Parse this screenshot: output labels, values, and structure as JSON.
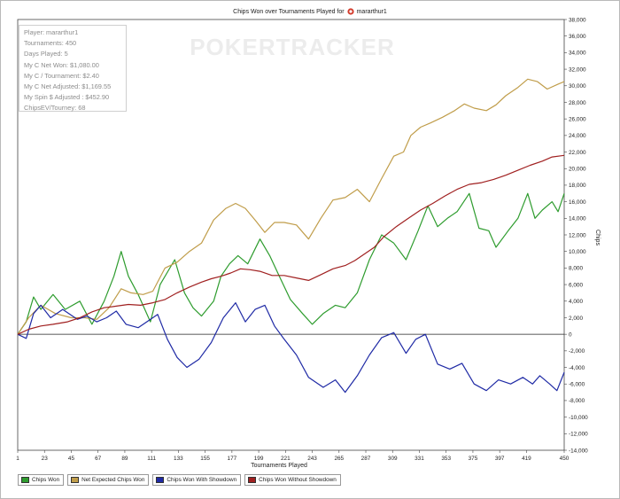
{
  "chart_data": {
    "type": "line",
    "title": "Chips Won over Tournaments Played for",
    "player_label": "mararthur1",
    "watermark": "POKERTRACKER",
    "xlabel": "Tournaments Played",
    "ylabel": "Chips",
    "xlim": [
      1,
      450
    ],
    "ylim": [
      -14000,
      38000
    ],
    "x_ticks": [
      1,
      23,
      45,
      67,
      89,
      111,
      133,
      155,
      177,
      199,
      221,
      243,
      265,
      287,
      309,
      331,
      353,
      375,
      397,
      419,
      450
    ],
    "y_ticks": [
      -14000,
      -12000,
      -10000,
      -8000,
      -6000,
      -4000,
      -2000,
      0,
      2000,
      4000,
      6000,
      8000,
      10000,
      12000,
      14000,
      16000,
      18000,
      20000,
      22000,
      24000,
      26000,
      28000,
      30000,
      32000,
      34000,
      36000,
      38000
    ],
    "y_tick_labels": [
      "-14,000",
      "-12,000",
      "-10,000",
      "-8,000",
      "-6,000",
      "-4,000",
      "-2,000",
      "0",
      "2,000",
      "4,000",
      "6,000",
      "8,000",
      "10,000",
      "12,000",
      "14,000",
      "16,000",
      "18,000",
      "20,000",
      "22,000",
      "24,000",
      "26,000",
      "28,000",
      "30,000",
      "32,000",
      "34,000",
      "36,000",
      "38,000"
    ],
    "grid": false,
    "legend_position": "bottom-left",
    "series": [
      {
        "name": "Chips Won",
        "color": "#2e9c2e",
        "points": [
          [
            1,
            0
          ],
          [
            8,
            1500
          ],
          [
            14,
            4500
          ],
          [
            20,
            3000
          ],
          [
            30,
            4800
          ],
          [
            40,
            3000
          ],
          [
            52,
            4000
          ],
          [
            62,
            1200
          ],
          [
            72,
            4000
          ],
          [
            80,
            7000
          ],
          [
            86,
            10000
          ],
          [
            92,
            7000
          ],
          [
            100,
            4800
          ],
          [
            110,
            1500
          ],
          [
            118,
            6000
          ],
          [
            130,
            9000
          ],
          [
            138,
            5000
          ],
          [
            145,
            3200
          ],
          [
            152,
            2200
          ],
          [
            162,
            4000
          ],
          [
            168,
            7000
          ],
          [
            175,
            8500
          ],
          [
            182,
            9500
          ],
          [
            190,
            8500
          ],
          [
            200,
            11500
          ],
          [
            208,
            9500
          ],
          [
            216,
            7000
          ],
          [
            225,
            4200
          ],
          [
            235,
            2500
          ],
          [
            243,
            1200
          ],
          [
            252,
            2500
          ],
          [
            262,
            3500
          ],
          [
            270,
            3200
          ],
          [
            280,
            5000
          ],
          [
            290,
            9000
          ],
          [
            300,
            12000
          ],
          [
            310,
            11000
          ],
          [
            320,
            9000
          ],
          [
            330,
            12500
          ],
          [
            338,
            15500
          ],
          [
            346,
            13000
          ],
          [
            354,
            14000
          ],
          [
            362,
            14800
          ],
          [
            372,
            17000
          ],
          [
            380,
            12800
          ],
          [
            388,
            12500
          ],
          [
            394,
            10500
          ],
          [
            404,
            12500
          ],
          [
            412,
            14000
          ],
          [
            420,
            17000
          ],
          [
            426,
            14000
          ],
          [
            432,
            15000
          ],
          [
            440,
            16000
          ],
          [
            445,
            14800
          ],
          [
            450,
            17000
          ]
        ]
      },
      {
        "name": "Net Expected Chips Won",
        "color": "#c09d4a",
        "points": [
          [
            1,
            0
          ],
          [
            10,
            2000
          ],
          [
            20,
            3500
          ],
          [
            32,
            2500
          ],
          [
            45,
            2000
          ],
          [
            56,
            2000
          ],
          [
            66,
            1800
          ],
          [
            76,
            3200
          ],
          [
            86,
            5500
          ],
          [
            94,
            5000
          ],
          [
            104,
            4800
          ],
          [
            112,
            5200
          ],
          [
            122,
            8000
          ],
          [
            132,
            8700
          ],
          [
            142,
            10000
          ],
          [
            152,
            11000
          ],
          [
            162,
            13800
          ],
          [
            172,
            15200
          ],
          [
            180,
            15800
          ],
          [
            188,
            15200
          ],
          [
            196,
            13800
          ],
          [
            204,
            12300
          ],
          [
            212,
            13500
          ],
          [
            220,
            13500
          ],
          [
            230,
            13200
          ],
          [
            240,
            11500
          ],
          [
            250,
            14000
          ],
          [
            260,
            16200
          ],
          [
            270,
            16500
          ],
          [
            280,
            17500
          ],
          [
            290,
            16000
          ],
          [
            300,
            18800
          ],
          [
            310,
            21500
          ],
          [
            318,
            22000
          ],
          [
            324,
            24000
          ],
          [
            332,
            25000
          ],
          [
            340,
            25500
          ],
          [
            350,
            26200
          ],
          [
            360,
            27000
          ],
          [
            368,
            27800
          ],
          [
            376,
            27300
          ],
          [
            386,
            27000
          ],
          [
            394,
            27700
          ],
          [
            402,
            28800
          ],
          [
            412,
            29800
          ],
          [
            420,
            30800
          ],
          [
            428,
            30500
          ],
          [
            436,
            29600
          ],
          [
            445,
            30200
          ],
          [
            450,
            30500
          ]
        ]
      },
      {
        "name": "Chips Won With Showdown",
        "color": "#1f2aa5",
        "points": [
          [
            1,
            0
          ],
          [
            8,
            -500
          ],
          [
            14,
            2500
          ],
          [
            20,
            3500
          ],
          [
            28,
            2000
          ],
          [
            38,
            3000
          ],
          [
            50,
            1800
          ],
          [
            58,
            2200
          ],
          [
            66,
            1500
          ],
          [
            74,
            2000
          ],
          [
            82,
            2800
          ],
          [
            90,
            1200
          ],
          [
            100,
            800
          ],
          [
            108,
            1600
          ],
          [
            116,
            2400
          ],
          [
            124,
            -600
          ],
          [
            132,
            -2800
          ],
          [
            140,
            -4000
          ],
          [
            150,
            -3000
          ],
          [
            160,
            -1000
          ],
          [
            170,
            2000
          ],
          [
            180,
            3800
          ],
          [
            188,
            1500
          ],
          [
            196,
            3000
          ],
          [
            204,
            3500
          ],
          [
            212,
            1000
          ],
          [
            220,
            -600
          ],
          [
            230,
            -2500
          ],
          [
            240,
            -5200
          ],
          [
            252,
            -6400
          ],
          [
            262,
            -5500
          ],
          [
            270,
            -7000
          ],
          [
            280,
            -5000
          ],
          [
            290,
            -2500
          ],
          [
            300,
            -400
          ],
          [
            310,
            200
          ],
          [
            320,
            -2300
          ],
          [
            328,
            -600
          ],
          [
            336,
            0
          ],
          [
            346,
            -3600
          ],
          [
            356,
            -4200
          ],
          [
            366,
            -3500
          ],
          [
            376,
            -6000
          ],
          [
            386,
            -6800
          ],
          [
            396,
            -5500
          ],
          [
            406,
            -6000
          ],
          [
            416,
            -5200
          ],
          [
            424,
            -6000
          ],
          [
            430,
            -5000
          ],
          [
            438,
            -6000
          ],
          [
            444,
            -6800
          ],
          [
            450,
            -4600
          ]
        ]
      },
      {
        "name": "Chips Won Without Showdown",
        "color": "#a02020",
        "points": [
          [
            1,
            0
          ],
          [
            10,
            600
          ],
          [
            20,
            1000
          ],
          [
            30,
            1200
          ],
          [
            42,
            1500
          ],
          [
            52,
            2000
          ],
          [
            62,
            2700
          ],
          [
            72,
            3200
          ],
          [
            82,
            3400
          ],
          [
            92,
            3600
          ],
          [
            102,
            3500
          ],
          [
            112,
            3800
          ],
          [
            122,
            4200
          ],
          [
            132,
            5000
          ],
          [
            142,
            5700
          ],
          [
            152,
            6300
          ],
          [
            160,
            6700
          ],
          [
            168,
            7000
          ],
          [
            176,
            7400
          ],
          [
            184,
            7900
          ],
          [
            192,
            7800
          ],
          [
            200,
            7600
          ],
          [
            210,
            7100
          ],
          [
            220,
            7100
          ],
          [
            230,
            6800
          ],
          [
            240,
            6500
          ],
          [
            250,
            7200
          ],
          [
            260,
            7900
          ],
          [
            270,
            8300
          ],
          [
            278,
            8900
          ],
          [
            286,
            9700
          ],
          [
            294,
            10500
          ],
          [
            302,
            11800
          ],
          [
            312,
            13000
          ],
          [
            322,
            14000
          ],
          [
            332,
            15000
          ],
          [
            342,
            15800
          ],
          [
            352,
            16700
          ],
          [
            362,
            17500
          ],
          [
            372,
            18100
          ],
          [
            382,
            18300
          ],
          [
            392,
            18700
          ],
          [
            402,
            19200
          ],
          [
            412,
            19800
          ],
          [
            422,
            20400
          ],
          [
            432,
            20900
          ],
          [
            440,
            21400
          ],
          [
            450,
            21600
          ]
        ]
      }
    ]
  },
  "stats": {
    "player": "Player: mararthur1",
    "tournaments": "Tournaments: 450",
    "days": "Days Played: 5",
    "net_won": "My C Net Won: $1,080.00",
    "per_tourney": "My C / Tournament: $2.40",
    "net_adjusted": "My C Net Adjusted: $1,169.55",
    "spin_adjusted": "My Spin $ Adjusted : $452.90",
    "chips_ev": "ChipsEV/Tourney: 68"
  },
  "legend": {
    "items": [
      "Chips Won",
      "Net Expected Chips Won",
      "Chips Won With Showdown",
      "Chips Won Without Showdown"
    ],
    "colors": [
      "#2e9c2e",
      "#c09d4a",
      "#1f2aa5",
      "#a02020"
    ]
  }
}
